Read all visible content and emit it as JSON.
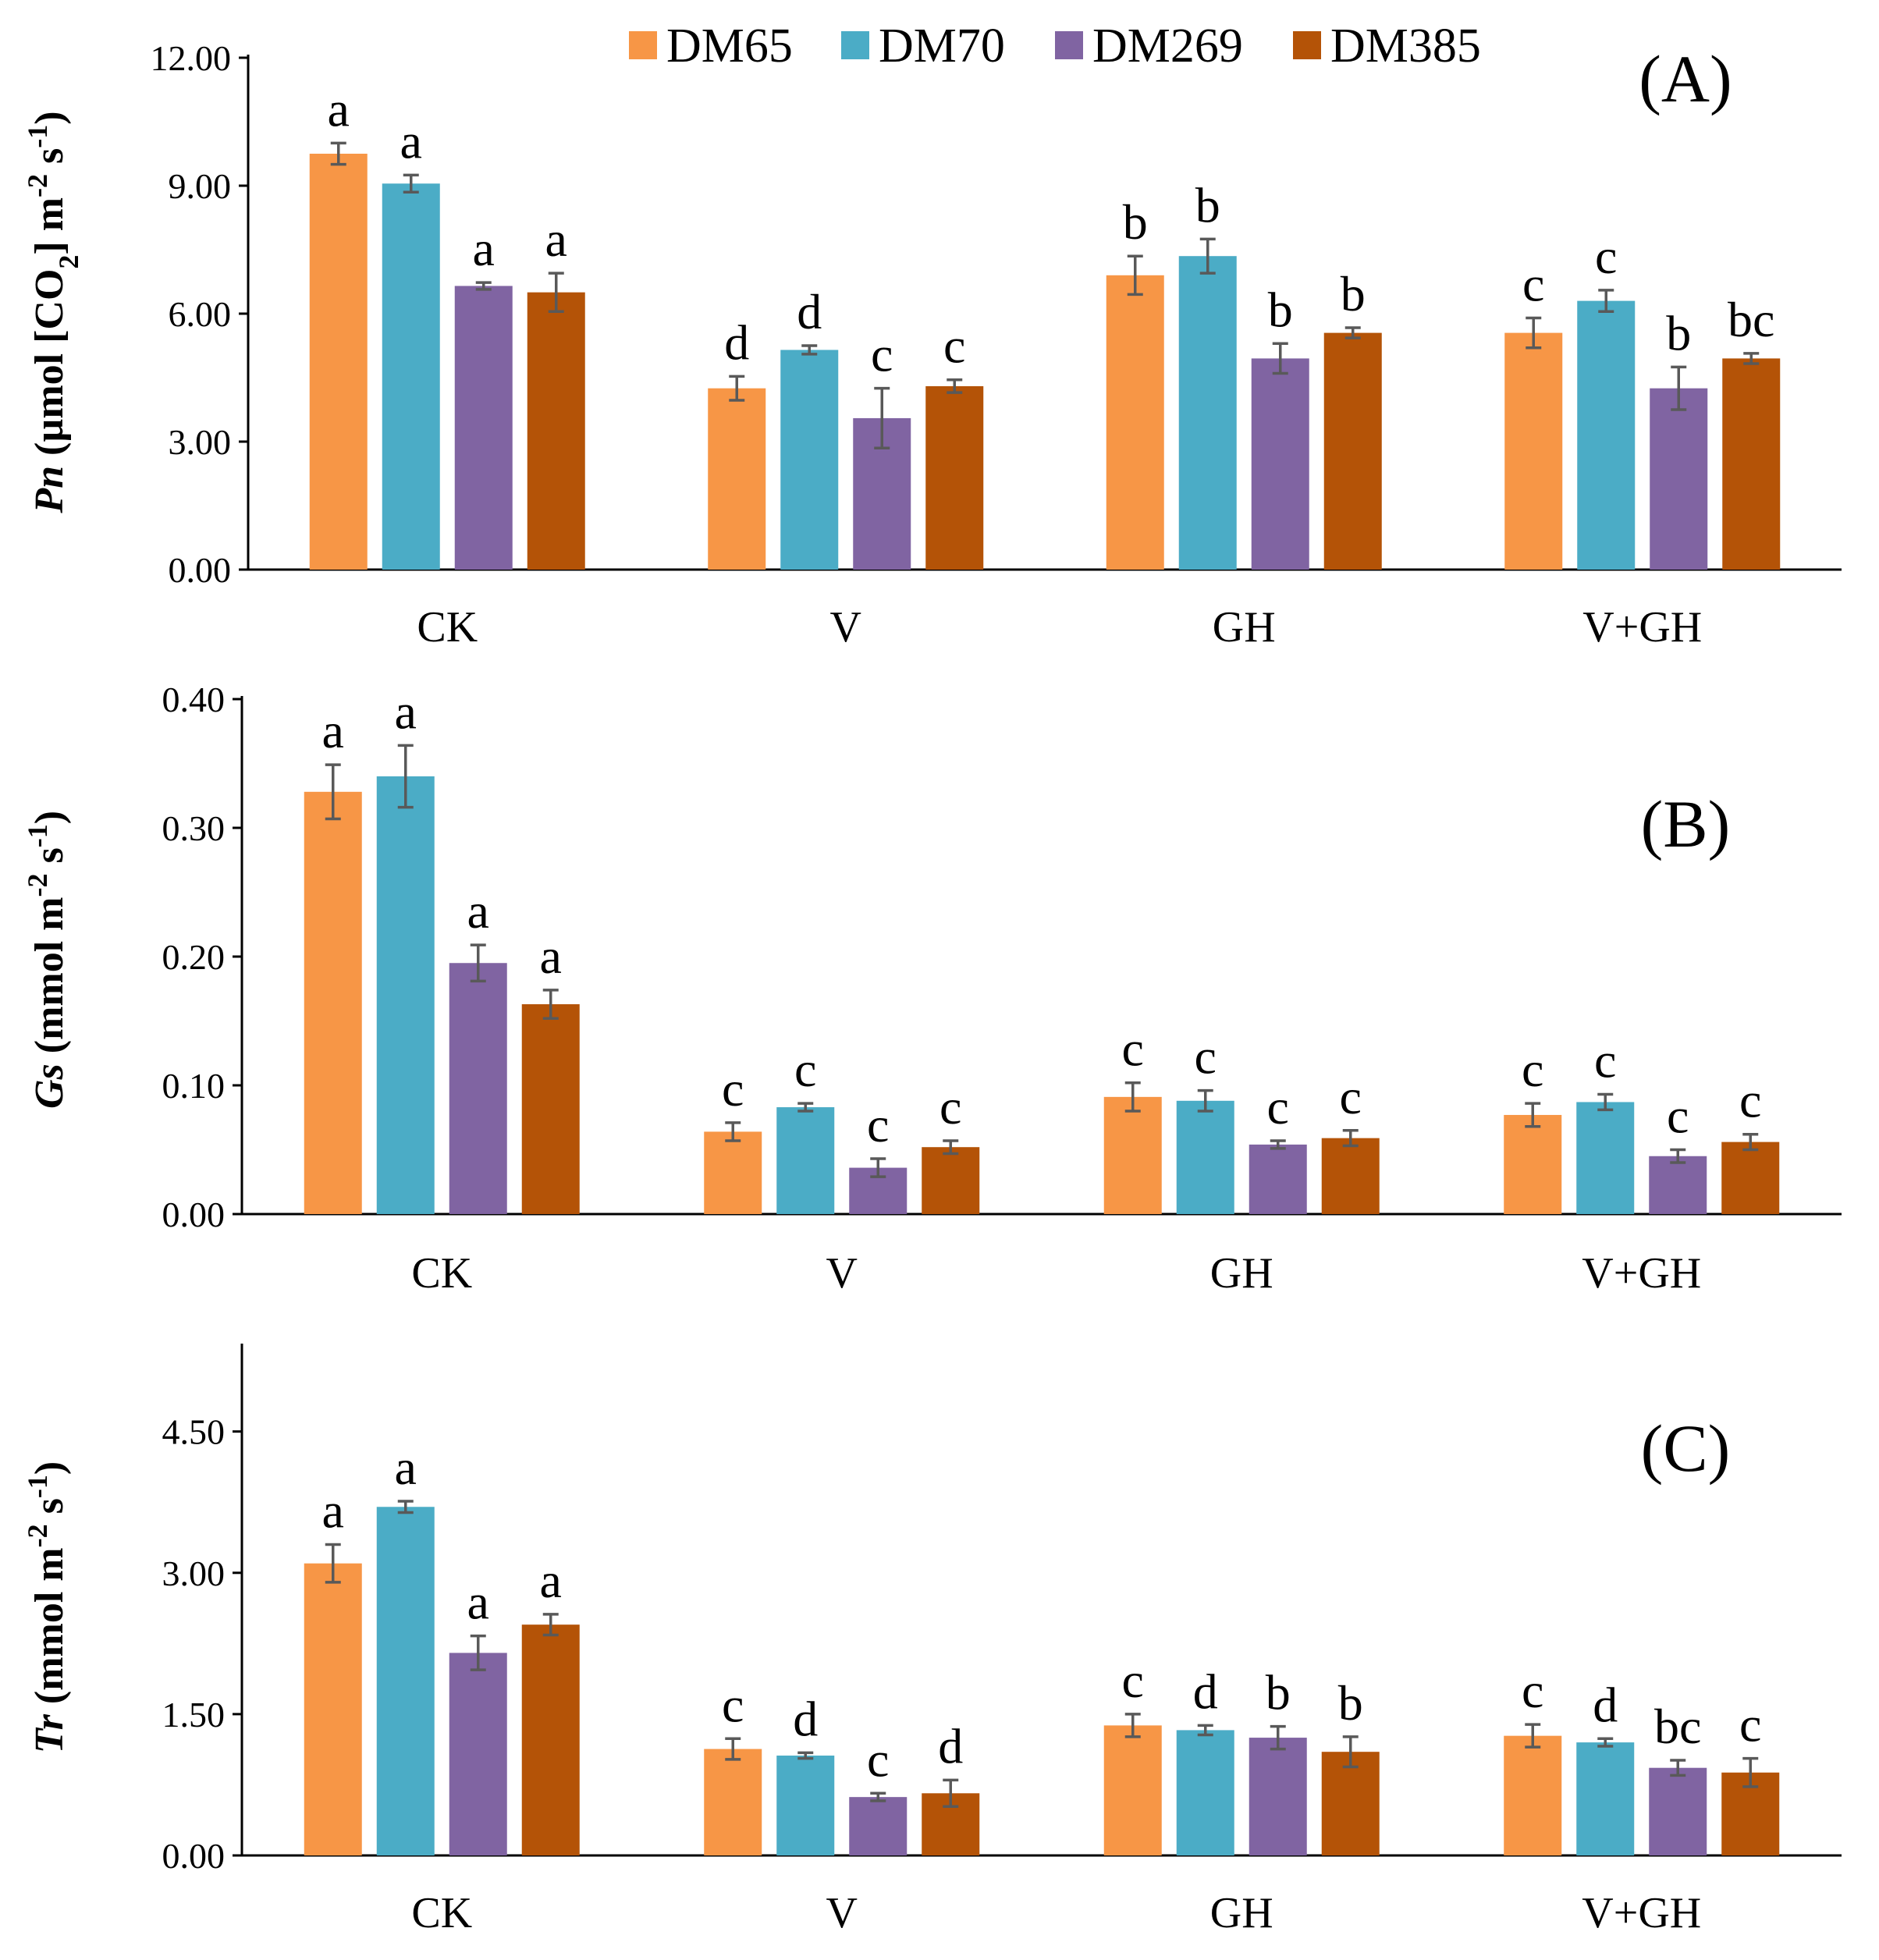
{
  "chart_data": [
    {
      "type": "bar",
      "panel_label": "(A)",
      "ylabel": {
        "var": "Pn",
        "rest": " (µmol [CO",
        "sub": "2",
        "rest2": "] m",
        "sup1": "-2",
        "mid": " s",
        "sup2": "-1",
        "end": ")"
      },
      "ylim": [
        0,
        12
      ],
      "yticks": [
        "0.00",
        "3.00",
        "6.00",
        "9.00",
        "12.00"
      ],
      "ytick_values": [
        0,
        3,
        6,
        9,
        12
      ],
      "categories": [
        "CK",
        "V",
        "GH",
        "V+GH"
      ],
      "series": [
        {
          "name": "DM65",
          "values": [
            9.75,
            4.25,
            6.9,
            5.55
          ],
          "errors": [
            0.25,
            0.28,
            0.45,
            0.35
          ],
          "letters": [
            "a",
            "d",
            "b",
            "c"
          ]
        },
        {
          "name": "DM70",
          "values": [
            9.05,
            5.15,
            7.35,
            6.3
          ],
          "errors": [
            0.2,
            0.1,
            0.4,
            0.25
          ],
          "letters": [
            "a",
            "d",
            "b",
            "c"
          ]
        },
        {
          "name": "DM269",
          "values": [
            6.65,
            3.55,
            4.95,
            4.25
          ],
          "errors": [
            0.08,
            0.7,
            0.35,
            0.5
          ],
          "letters": [
            "a",
            "c",
            "b",
            "b"
          ]
        },
        {
          "name": "DM385",
          "values": [
            6.5,
            4.3,
            5.55,
            4.95
          ],
          "errors": [
            0.45,
            0.15,
            0.12,
            0.12
          ],
          "letters": [
            "a",
            "c",
            "b",
            "bc"
          ]
        }
      ]
    },
    {
      "type": "bar",
      "panel_label": "(B)",
      "ylabel": {
        "var": "Gs",
        "rest": " (mmol m",
        "sup1": "-2",
        "mid": " s",
        "sup2": "-1",
        "end": ")"
      },
      "ylim": [
        0,
        0.4
      ],
      "yticks": [
        "0.00",
        "0.10",
        "0.20",
        "0.30",
        "0.40"
      ],
      "ytick_values": [
        0,
        0.1,
        0.2,
        0.3,
        0.4
      ],
      "categories": [
        "CK",
        "V",
        "GH",
        "V+GH"
      ],
      "series": [
        {
          "name": "DM65",
          "values": [
            0.328,
            0.064,
            0.091,
            0.077
          ],
          "errors": [
            0.021,
            0.007,
            0.011,
            0.009
          ],
          "letters": [
            "a",
            "c",
            "c",
            "c"
          ]
        },
        {
          "name": "DM70",
          "values": [
            0.34,
            0.083,
            0.088,
            0.087
          ],
          "errors": [
            0.024,
            0.003,
            0.008,
            0.006
          ],
          "letters": [
            "a",
            "c",
            "c",
            "c"
          ]
        },
        {
          "name": "DM269",
          "values": [
            0.195,
            0.036,
            0.054,
            0.045
          ],
          "errors": [
            0.014,
            0.007,
            0.003,
            0.005
          ],
          "letters": [
            "a",
            "c",
            "c",
            "c"
          ]
        },
        {
          "name": "DM385",
          "values": [
            0.163,
            0.052,
            0.059,
            0.056
          ],
          "errors": [
            0.011,
            0.005,
            0.006,
            0.006
          ],
          "letters": [
            "a",
            "c",
            "c",
            "c"
          ]
        }
      ]
    },
    {
      "type": "bar",
      "panel_label": "(C)",
      "ylabel": {
        "var": "Tr",
        "rest": " (mmol m",
        "sup1": "-2",
        "mid": " s",
        "sup2": "-1",
        "end": ")"
      },
      "ylim": [
        0,
        5.4
      ],
      "yticks": [
        "0.00",
        "1.50",
        "3.00",
        "4.50"
      ],
      "ytick_values": [
        0,
        1.5,
        3,
        4.5
      ],
      "categories": [
        "CK",
        "V",
        "GH",
        "V+GH"
      ],
      "series": [
        {
          "name": "DM65",
          "values": [
            3.1,
            1.13,
            1.38,
            1.27
          ],
          "errors": [
            0.2,
            0.11,
            0.12,
            0.12
          ],
          "letters": [
            "a",
            "c",
            "c",
            "c"
          ]
        },
        {
          "name": "DM70",
          "values": [
            3.7,
            1.06,
            1.33,
            1.2
          ],
          "errors": [
            0.06,
            0.03,
            0.05,
            0.04
          ],
          "letters": [
            "a",
            "d",
            "d",
            "d"
          ]
        },
        {
          "name": "DM269",
          "values": [
            2.15,
            0.62,
            1.25,
            0.93
          ],
          "errors": [
            0.18,
            0.04,
            0.12,
            0.08
          ],
          "letters": [
            "a",
            "c",
            "b",
            "bc"
          ]
        },
        {
          "name": "DM385",
          "values": [
            2.45,
            0.66,
            1.1,
            0.88
          ],
          "errors": [
            0.11,
            0.14,
            0.16,
            0.15
          ],
          "letters": [
            "a",
            "d",
            "b",
            "c"
          ]
        }
      ]
    }
  ],
  "legend": [
    "DM65",
    "DM70",
    "DM269",
    "DM385"
  ],
  "colors": {
    "DM65": "#f79646",
    "DM70": "#4bacc6",
    "DM269": "#8064a2",
    "DM385": "#b45307",
    "error": "#595959",
    "axis": "#000000"
  }
}
